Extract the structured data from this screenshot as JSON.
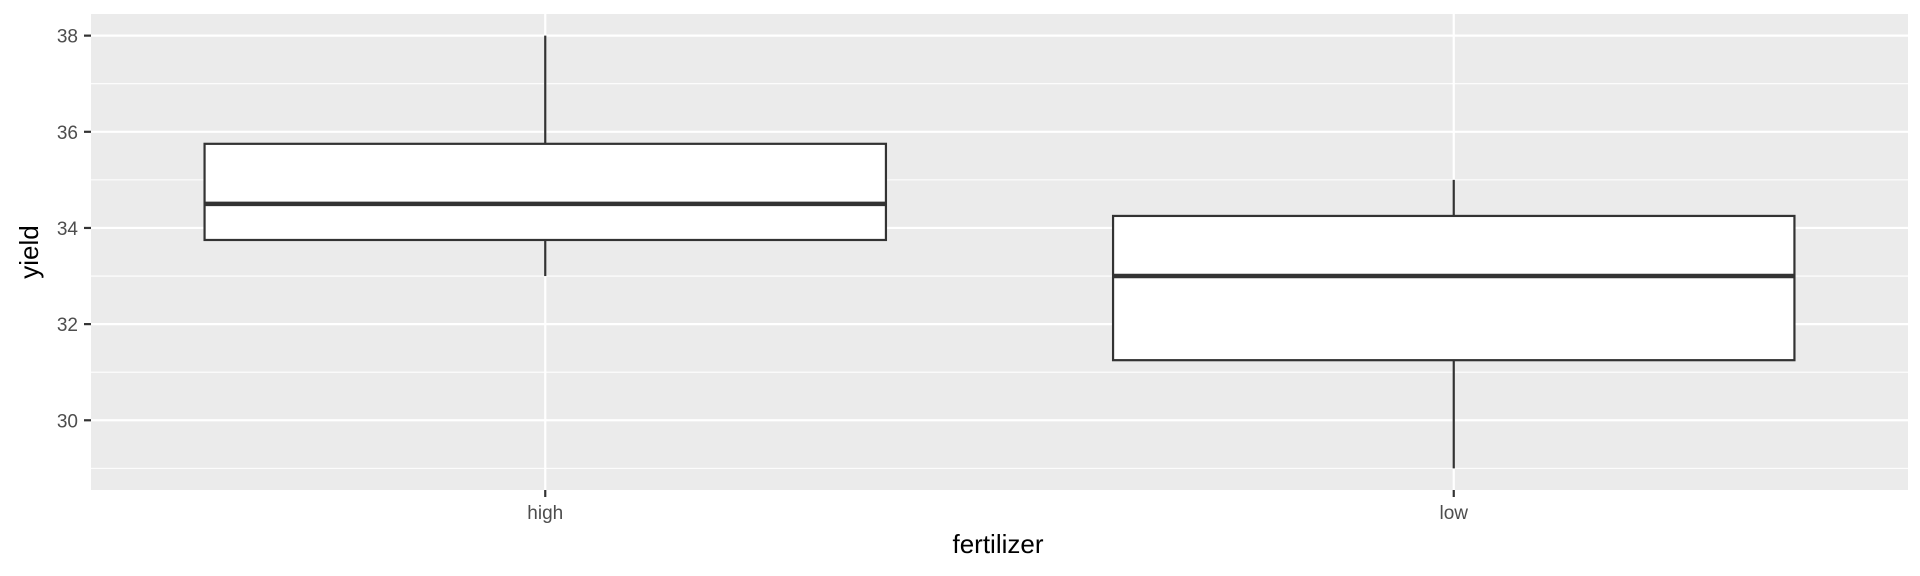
{
  "chart_data": {
    "type": "boxplot",
    "xlabel": "fertilizer",
    "ylabel": "yield",
    "categories": [
      "high",
      "low"
    ],
    "boxes": [
      {
        "category": "high",
        "min": 33.0,
        "q1": 33.75,
        "median": 34.5,
        "q3": 35.75,
        "max": 38.0
      },
      {
        "category": "low",
        "min": 29.0,
        "q1": 31.25,
        "median": 33.0,
        "q3": 34.25,
        "max": 35.0
      }
    ],
    "ylim": [
      28.55,
      38.45
    ],
    "yticks": [
      30,
      32,
      34,
      36,
      38
    ],
    "grid": true,
    "colors": {
      "panel_background": "#ebebeb",
      "gridline": "#ffffff",
      "box_fill": "#ffffff",
      "box_stroke": "#333333",
      "tick": "#333333"
    }
  }
}
